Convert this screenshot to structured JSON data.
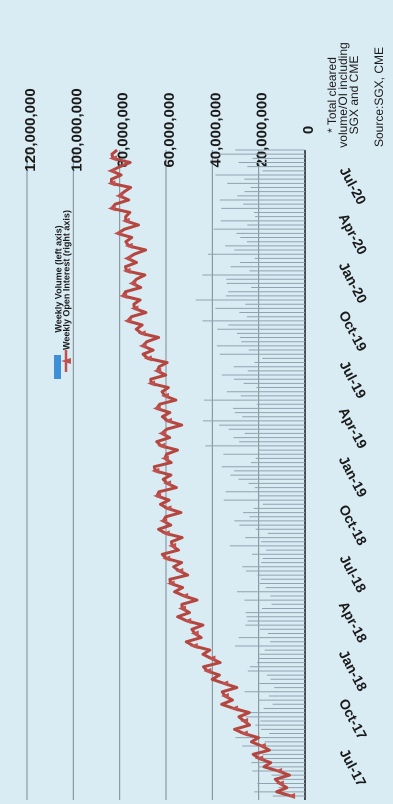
{
  "chart_data": {
    "type": "bar+line",
    "orientation": "rotated-90-clockwise",
    "x": [
      "Jul-17",
      "Oct-17",
      "Jan-18",
      "Apr-18",
      "Jul-18",
      "Oct-18",
      "Jan-19",
      "Apr-19",
      "Jul-19",
      "Oct-19",
      "Jan-20",
      "Apr-20",
      "Jul-20"
    ],
    "series": [
      {
        "name": "Weekly Volume (left axis)",
        "kind": "bar",
        "axis": "left",
        "values": [
          18000000,
          26000000,
          21000000,
          27000000,
          24000000,
          28000000,
          33000000,
          39000000,
          31000000,
          41000000,
          36000000,
          34000000,
          32000000
        ]
      },
      {
        "name": "Weekly Open Interest (right axis)",
        "kind": "line",
        "axis": "right",
        "values": [
          6000000,
          22000000,
          35000000,
          48000000,
          55000000,
          59000000,
          61000000,
          59000000,
          64000000,
          74000000,
          74000000,
          79000000,
          82000000
        ]
      }
    ],
    "right_axis": {
      "ticks": [
        "0",
        "20,000,000",
        "40,000,000",
        "60,000,000",
        "80,000,000",
        "100,000,000",
        "120,000,000"
      ],
      "range": [
        0,
        120000000
      ]
    },
    "grid": true,
    "legend_position": "upper-middle",
    "colors": {
      "volume": "#5b9bd5",
      "open_interest": "#c0504d",
      "background": "#d9ebf3"
    }
  },
  "footnote": "* Total cleared volume/OI including SGX and CME",
  "source": "Source:SGX, CME"
}
